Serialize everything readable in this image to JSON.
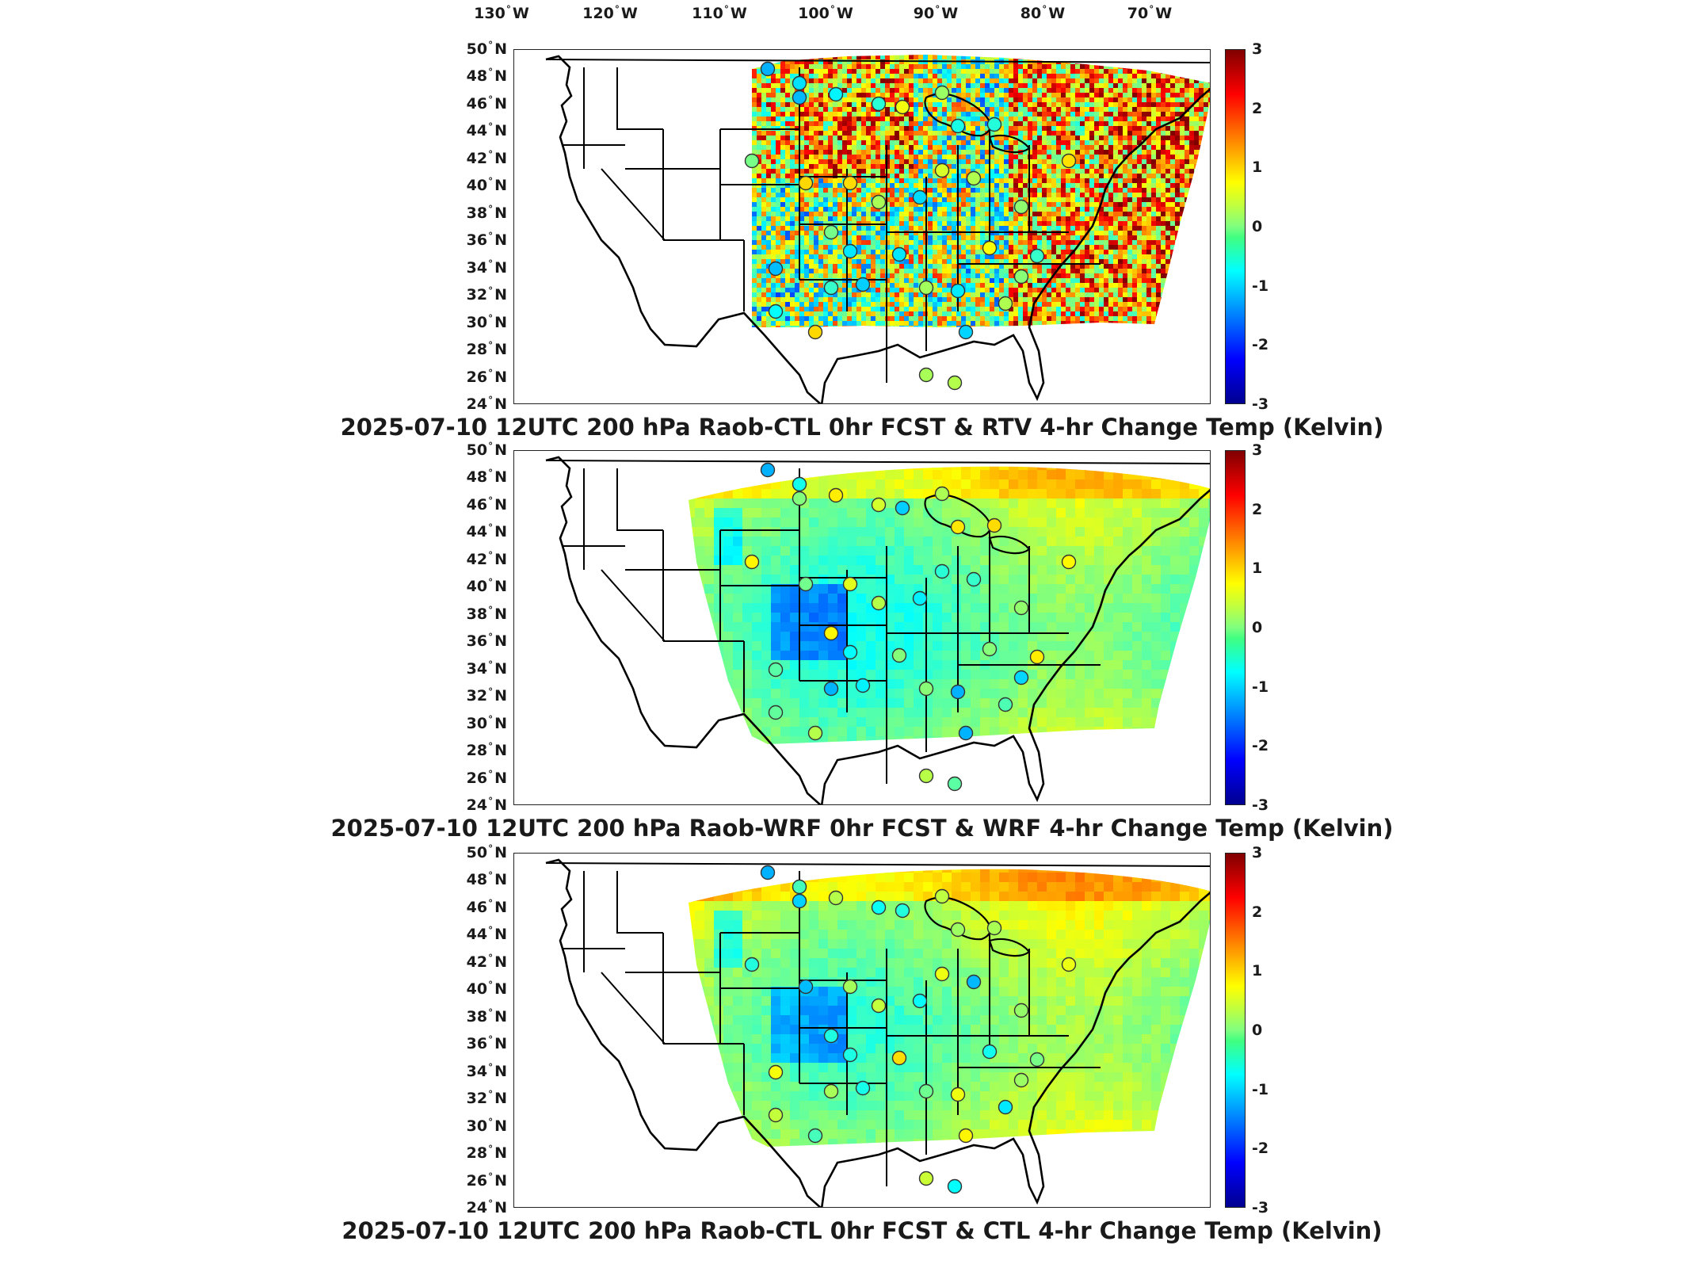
{
  "figure": {
    "lon_labels": [
      "130",
      "120",
      "110",
      "100",
      "90",
      "80",
      "70"
    ],
    "lon_suffix": "W",
    "lat_labels": [
      "50",
      "48",
      "46",
      "44",
      "42",
      "40",
      "38",
      "36",
      "34",
      "32",
      "30",
      "28",
      "26",
      "24"
    ],
    "lat_suffix": "N",
    "degree_symbol": "°",
    "colorbar": {
      "ticks": [
        "3",
        "2",
        "1",
        "0",
        "-1",
        "-2",
        "-3"
      ],
      "range": [
        -3,
        3
      ],
      "colormap": "jet",
      "units": "Kelvin"
    },
    "colors": {
      "low": "#00008f",
      "zero": "#80ff80",
      "high": "#800000",
      "raob_marker": "#333333",
      "coastline": "#000000"
    }
  },
  "panels": [
    {
      "id": "rtv",
      "title": "2025-07-10 12UTC 200 hPa Raob-CTL 0hr FCST & RTV 4-hr Change Temp (Kelvin)",
      "domain_shape": "rtv-swath",
      "field_character": "noisy, warm east and north-central, neutral southwest"
    },
    {
      "id": "wrf",
      "title": "2025-07-10 12UTC 200 hPa Raob-WRF 0hr FCST & WRF 4-hr Change Temp (Kelvin)",
      "domain_shape": "wrf-fan",
      "field_character": "smooth, mostly near zero, slight cool in plains"
    },
    {
      "id": "ctl",
      "title": "2025-07-10 12UTC 200 hPa Raob-CTL 0hr FCST & CTL 4-hr Change Temp (Kelvin)",
      "domain_shape": "wrf-fan",
      "field_character": "smooth, mostly near zero, slight warm north"
    }
  ]
}
